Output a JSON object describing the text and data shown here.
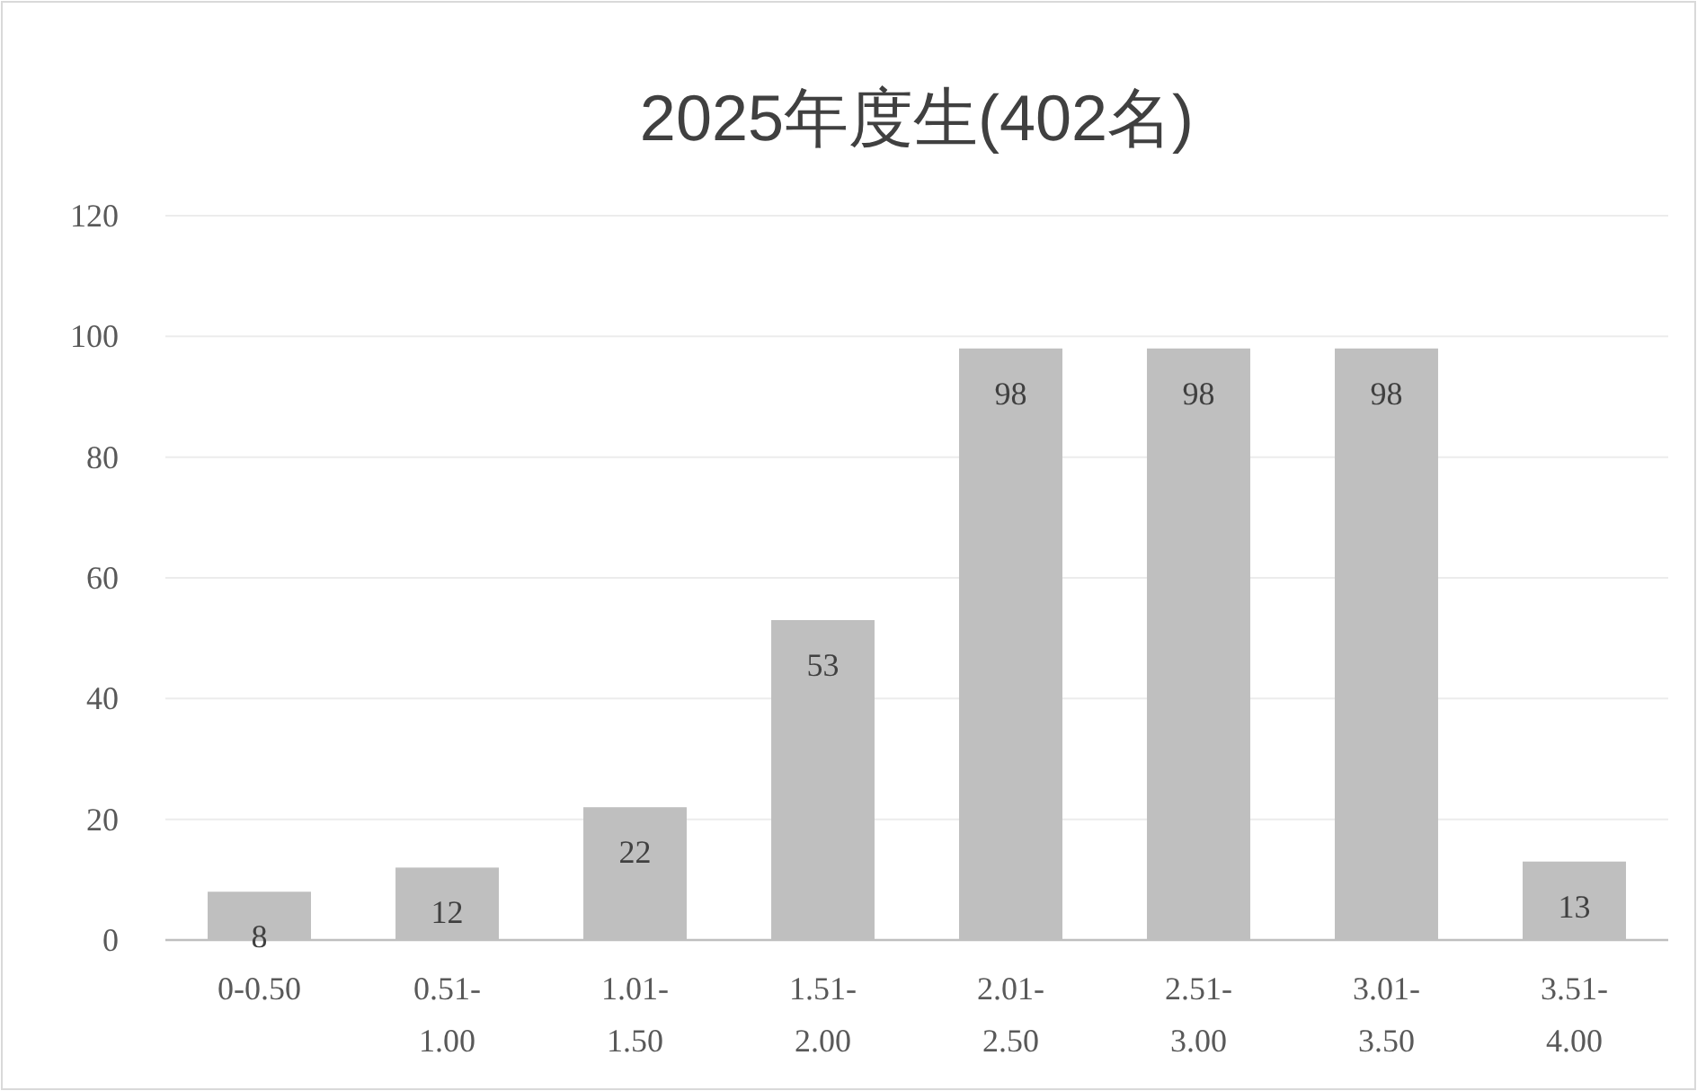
{
  "chart_data": {
    "type": "bar",
    "title": "2025年度生(402名)",
    "categories": [
      "0-0.50",
      "0.51-1.00",
      "1.01-1.50",
      "1.51-2.00",
      "2.01-2.50",
      "2.51-3.00",
      "3.01-3.50",
      "3.51-4.00"
    ],
    "values": [
      8,
      12,
      22,
      53,
      98,
      98,
      98,
      13
    ],
    "color": "#bfbfbf",
    "ylim": [
      0,
      120
    ],
    "yticks": [
      0,
      20,
      40,
      60,
      80,
      100,
      120
    ],
    "grid": "y",
    "data_labels": true
  }
}
